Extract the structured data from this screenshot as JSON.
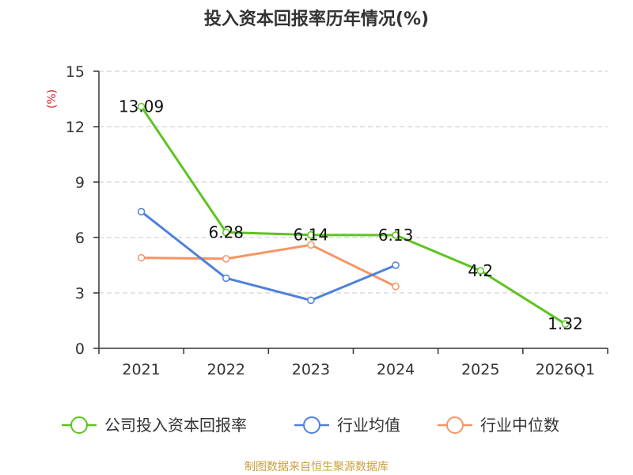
{
  "chart_data": {
    "type": "line",
    "title": "投入资本回报率历年情况(%)",
    "ylabel": "(%)",
    "xlabel": "",
    "ylim": [
      0,
      15
    ],
    "yticks": [
      0,
      3,
      6,
      9,
      12,
      15
    ],
    "grid": true,
    "legend_position": "bottom",
    "categories": [
      "2021",
      "2022",
      "2023",
      "2024",
      "2025",
      "2026Q1"
    ],
    "series": [
      {
        "name": "公司投入资本回报率",
        "color": "#5cc41f",
        "values": [
          13.09,
          6.28,
          6.14,
          6.13,
          4.2,
          1.32
        ],
        "labels": [
          "13.09",
          "6.28",
          "6.14",
          "6.13",
          "4.2",
          "1.32"
        ]
      },
      {
        "name": "行业均值",
        "color": "#4f81d9",
        "values": [
          7.4,
          3.8,
          2.6,
          4.5,
          null,
          null
        ]
      },
      {
        "name": "行业中位数",
        "color": "#f79464",
        "values": [
          4.9,
          4.85,
          5.6,
          3.35,
          null,
          null
        ]
      }
    ]
  },
  "source": "制图数据来自恒生聚源数据库"
}
